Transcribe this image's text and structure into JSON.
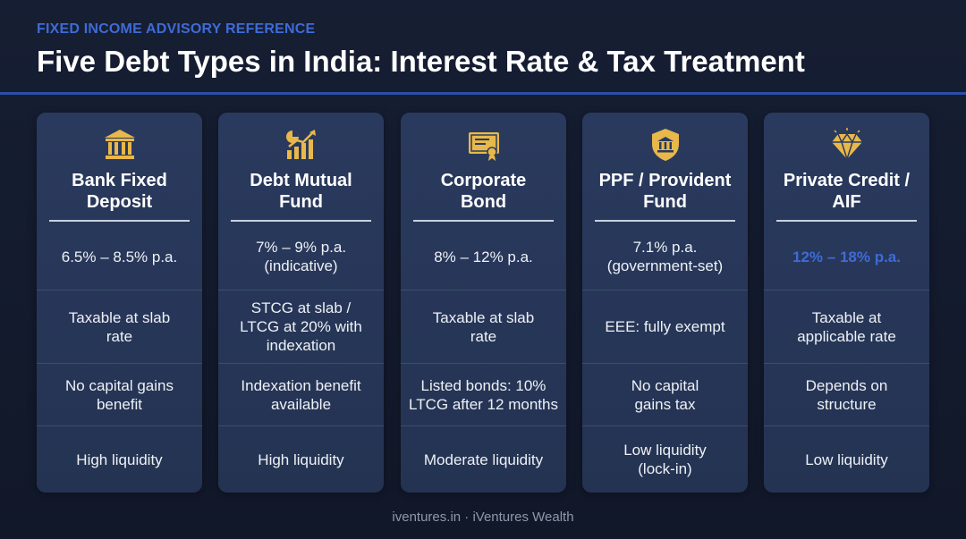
{
  "header": {
    "eyebrow": "FIXED INCOME ADVISORY REFERENCE",
    "title": "Five Debt Types in India: Interest Rate & Tax Treatment"
  },
  "colors": {
    "accent": "#3f6bd6",
    "icon_gold": "#e8b84a",
    "card_bg": "#2a3a5e",
    "page_bg": "#131a2c"
  },
  "cards": [
    {
      "icon": "bank-building-icon",
      "title_line1": "Bank Fixed",
      "title_line2": "Deposit",
      "rate": "6.5% – 8.5% p.a.",
      "tax_line1": "Taxable at slab",
      "tax_line2": "rate",
      "gains_line1": "No capital gains",
      "gains_line2": "benefit",
      "liquidity_line1": "High liquidity"
    },
    {
      "icon": "growth-chart-icon",
      "title_line1": "Debt Mutual",
      "title_line2": "Fund",
      "rate_line1": "7% – 9% p.a.",
      "rate_line2": "(indicative)",
      "tax_line1": "STCG at slab /",
      "tax_line2": "LTCG at 20% with",
      "tax_line3": "indexation",
      "gains_line1": "Indexation benefit",
      "gains_line2": "available",
      "liquidity_line1": "High liquidity"
    },
    {
      "icon": "certificate-icon",
      "title_line1": "Corporate",
      "title_line2": "Bond",
      "rate": "8% – 12% p.a.",
      "tax_line1": "Taxable at slab",
      "tax_line2": "rate",
      "gains_line1": "Listed bonds: 10%",
      "gains_line2": "LTCG after 12 months",
      "liquidity_line1": "Moderate liquidity"
    },
    {
      "icon": "shield-bank-icon",
      "title_line1": "PPF / Provident",
      "title_line2": "Fund",
      "rate_line1": "7.1% p.a.",
      "rate_line2": "(government-set)",
      "tax_line1": "EEE: fully exempt",
      "gains_line1": "No capital",
      "gains_line2": "gains tax",
      "liquidity_line1": "Low liquidity",
      "liquidity_line2": "(lock-in)"
    },
    {
      "icon": "diamond-icon",
      "title_line1": "Private Credit /",
      "title_line2": "AIF",
      "rate": "12% – 18% p.a.",
      "tax_line1": "Taxable at",
      "tax_line2": "applicable rate",
      "gains_line1": "Depends on",
      "gains_line2": "structure",
      "liquidity_line1": "Low liquidity"
    }
  ],
  "footer": {
    "text": "iventures.in · iVentures Wealth"
  }
}
